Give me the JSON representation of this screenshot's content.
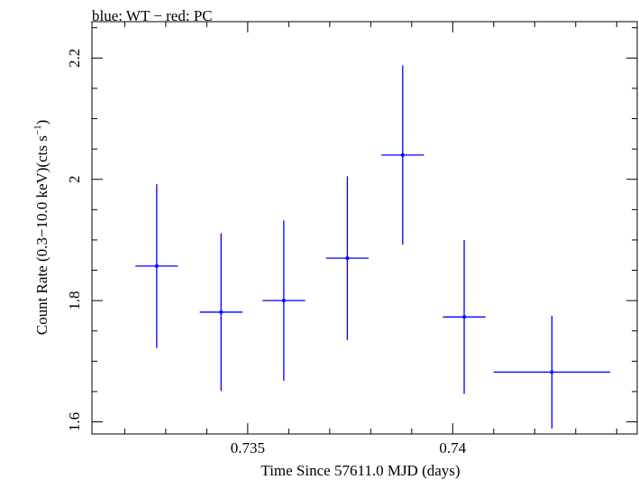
{
  "chart_data": {
    "type": "scatter",
    "title": "blue: WT − red: PC",
    "xlabel": "Time Since 57611.0 MJD (days)",
    "ylabel_main": "Count Rate (0.3−10.0 keV)(cts s",
    "ylabel_sup": "−1",
    "ylabel_close": ")",
    "xlim": [
      0.7312,
      0.7445
    ],
    "ylim": [
      1.58,
      2.26
    ],
    "x_ticks": [
      0.735,
      0.74
    ],
    "x_tick_labels": [
      "0.735",
      "0.74"
    ],
    "y_ticks": [
      1.6,
      1.8,
      2.0,
      2.2
    ],
    "y_tick_labels": [
      "1.6",
      "1.8",
      "2",
      "2.2"
    ],
    "x_minor_step": 0.001,
    "y_minor_step": 0.05,
    "series": [
      {
        "name": "WT",
        "color": "#0000ff",
        "points": [
          {
            "x": 0.73278,
            "xerr": 0.00052,
            "y": 1.857,
            "yerr": 0.135
          },
          {
            "x": 0.73435,
            "xerr": 0.00052,
            "y": 1.781,
            "yerr": 0.13
          },
          {
            "x": 0.73588,
            "xerr": 0.00052,
            "y": 1.8,
            "yerr": 0.132
          },
          {
            "x": 0.73743,
            "xerr": 0.00052,
            "y": 1.87,
            "yerr": 0.135
          },
          {
            "x": 0.73878,
            "xerr": 0.00052,
            "y": 2.04,
            "yerr": 0.148
          },
          {
            "x": 0.74028,
            "xerr": 0.00052,
            "y": 1.773,
            "yerr": 0.127
          },
          {
            "x": 0.74242,
            "xerr": 0.00142,
            "y": 1.682,
            "yerr": 0.093
          }
        ]
      }
    ]
  }
}
